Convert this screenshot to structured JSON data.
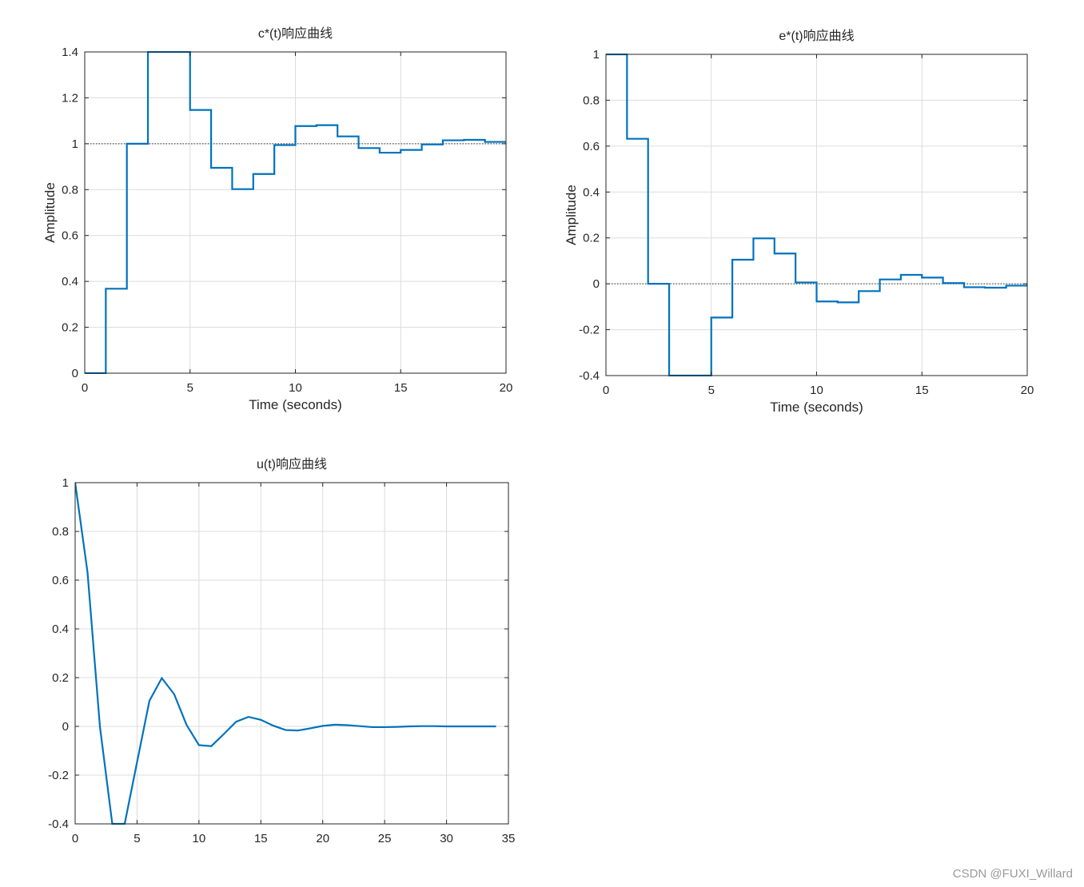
{
  "chart_data": [
    {
      "type": "line",
      "step": true,
      "title": "c*(t)响应曲线",
      "xlabel": "Time (seconds)",
      "ylabel": "Amplitude",
      "xlim": [
        0,
        20
      ],
      "ylim": [
        0,
        1.4
      ],
      "xticks": [
        "0",
        "5",
        "10",
        "15",
        "20"
      ],
      "yticks": [
        "0",
        "0.2",
        "0.4",
        "0.6",
        "0.8",
        "1",
        "1.2",
        "1.4"
      ],
      "grid": true,
      "reference_line": 1,
      "color": "#0072BD",
      "x": [
        0,
        1,
        2,
        3,
        4,
        5,
        6,
        7,
        8,
        9,
        10,
        11,
        12,
        13,
        14,
        15,
        16,
        17,
        18,
        19,
        20
      ],
      "y": [
        0,
        0.368,
        1.0,
        1.4,
        1.4,
        1.147,
        0.895,
        0.802,
        0.868,
        0.994,
        1.077,
        1.081,
        1.032,
        0.981,
        0.961,
        0.973,
        0.997,
        1.015,
        1.017,
        1.008,
        1.003
      ]
    },
    {
      "type": "line",
      "step": true,
      "title": "e*(t)响应曲线",
      "xlabel": "Time (seconds)",
      "ylabel": "Amplitude",
      "xlim": [
        0,
        20
      ],
      "ylim": [
        -0.4,
        1
      ],
      "xticks": [
        "0",
        "5",
        "10",
        "15",
        "20"
      ],
      "yticks": [
        "-0.4",
        "-0.2",
        "0",
        "0.2",
        "0.4",
        "0.6",
        "0.8",
        "1"
      ],
      "grid": true,
      "reference_line": 0,
      "color": "#0072BD",
      "x": [
        0,
        1,
        2,
        3,
        4,
        5,
        6,
        7,
        8,
        9,
        10,
        11,
        12,
        13,
        14,
        15,
        16,
        17,
        18,
        19,
        20
      ],
      "y": [
        1,
        0.632,
        0,
        -0.4,
        -0.4,
        -0.147,
        0.105,
        0.198,
        0.132,
        0.006,
        -0.077,
        -0.081,
        -0.032,
        0.019,
        0.039,
        0.027,
        0.003,
        -0.015,
        -0.017,
        -0.008,
        -0.003
      ]
    },
    {
      "type": "line",
      "step": false,
      "title": "u(t)响应曲线",
      "xlabel": "",
      "ylabel": "",
      "xlim": [
        0,
        35
      ],
      "ylim": [
        -0.4,
        1
      ],
      "xticks": [
        "0",
        "5",
        "10",
        "15",
        "20",
        "25",
        "30",
        "35"
      ],
      "yticks": [
        "-0.4",
        "-0.2",
        "0",
        "0.2",
        "0.4",
        "0.6",
        "0.8",
        "1"
      ],
      "grid": true,
      "color": "#0072BD",
      "x": [
        0,
        1,
        2,
        3,
        4,
        5,
        6,
        7,
        8,
        9,
        10,
        11,
        12,
        13,
        14,
        15,
        16,
        17,
        18,
        19,
        20,
        21,
        22,
        23,
        24,
        25,
        26,
        27,
        28,
        29,
        30,
        31,
        32,
        33,
        34
      ],
      "y": [
        1,
        0.632,
        0,
        -0.4,
        -0.4,
        -0.147,
        0.105,
        0.198,
        0.132,
        0.006,
        -0.077,
        -0.081,
        -0.032,
        0.019,
        0.039,
        0.027,
        0.003,
        -0.015,
        -0.017,
        -0.008,
        0.002,
        0.007,
        0.005,
        0.001,
        -0.003,
        -0.003,
        -0.002,
        0.0,
        0.001,
        0.001,
        0.0,
        0.0,
        0.0,
        0.0,
        0.0
      ]
    }
  ],
  "watermark": "CSDN @FUXI_Willard"
}
